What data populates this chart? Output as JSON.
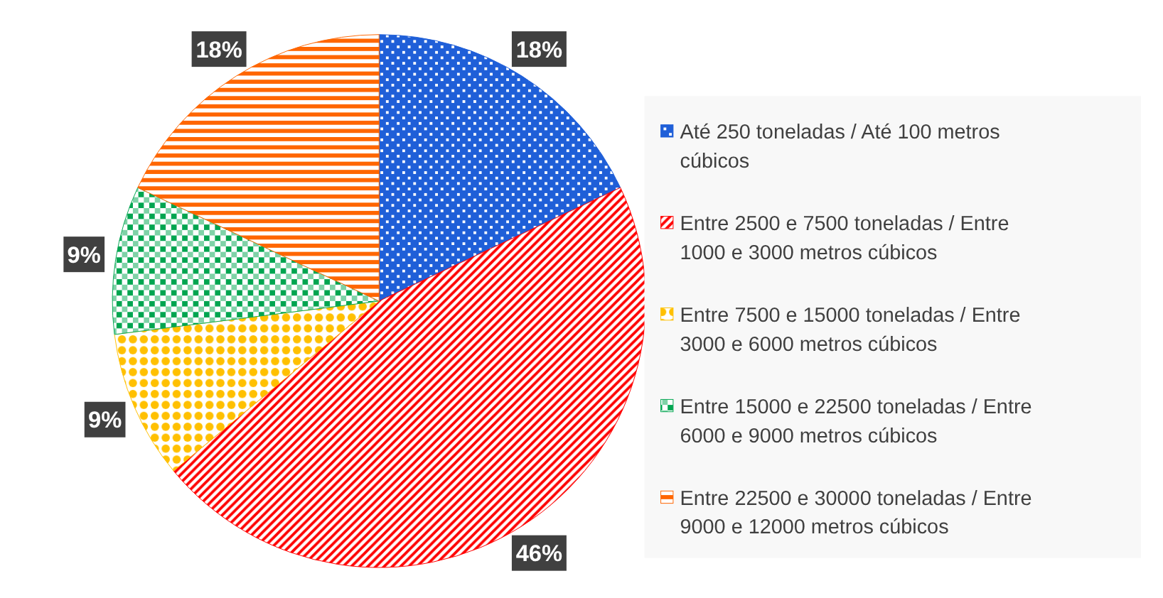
{
  "chart_data": {
    "type": "pie",
    "categories": [
      "Até 250 toneladas / Até 100 metros cúbicos",
      "Entre 2500 e 7500 toneladas / Entre 1000 e 3000 metros cúbicos",
      "Entre 7500 e 15000 toneladas / Entre 3000 e 6000 metros cúbicos",
      "Entre 15000 e 22500 toneladas / Entre 6000 e 9000 metros cúbicos",
      "Entre 22500 e 30000 toneladas / Entre 9000 e 12000 metros cúbicos"
    ],
    "values": [
      18,
      46,
      9,
      9,
      18
    ],
    "colors": [
      "#1f5fd8",
      "#ff0000",
      "#ffc000",
      "#00a550",
      "#ff6600"
    ],
    "value_labels": [
      "18%",
      "46%",
      "9%",
      "9%",
      "18%"
    ],
    "legend": "right"
  }
}
